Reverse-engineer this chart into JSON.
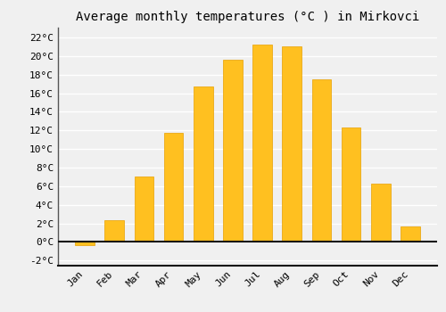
{
  "title": "Average monthly temperatures (°C ) in Mirkovci",
  "months": [
    "Jan",
    "Feb",
    "Mar",
    "Apr",
    "May",
    "Jun",
    "Jul",
    "Aug",
    "Sep",
    "Oct",
    "Nov",
    "Dec"
  ],
  "values": [
    -0.3,
    2.3,
    7.0,
    11.7,
    16.7,
    19.6,
    21.2,
    21.0,
    17.5,
    12.3,
    6.3,
    1.7
  ],
  "bar_color": "#FFC020",
  "bar_edge_color": "#E8A000",
  "ylim": [
    -2.5,
    23
  ],
  "yticks": [
    -2,
    0,
    2,
    4,
    6,
    8,
    10,
    12,
    14,
    16,
    18,
    20,
    22
  ],
  "background_color": "#f0f0f0",
  "grid_color": "#ffffff",
  "title_fontsize": 10,
  "tick_fontsize": 8
}
